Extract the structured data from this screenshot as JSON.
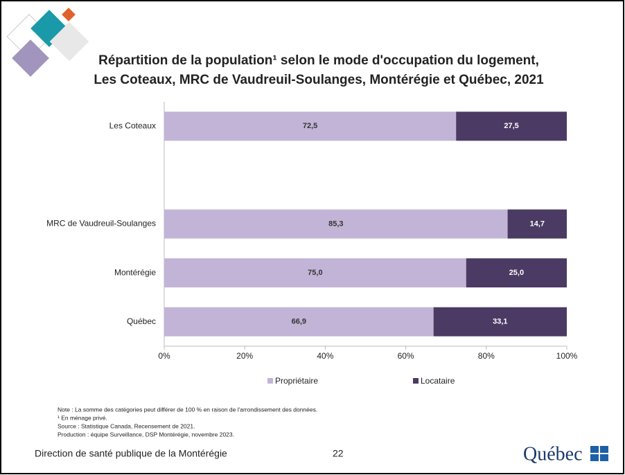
{
  "chart_data": {
    "type": "stacked-barh",
    "title": [
      "Répartition de la population¹ selon le mode d'occupation du logement,",
      "Les Coteaux, MRC de Vaudreuil-Soulanges, Montérégie et Québec, 2021"
    ],
    "categories": [
      "Les Coteaux",
      null,
      "MRC de Vaudreuil-Soulanges",
      "Montérégie",
      "Québec"
    ],
    "series": [
      {
        "name": "Propriétaire",
        "color": "#c2b4d7",
        "label_color": "#333333",
        "values": [
          72.5,
          null,
          85.3,
          75.0,
          66.9
        ],
        "value_labels": [
          "72,5",
          null,
          "85,3",
          "75,0",
          "66,9"
        ]
      },
      {
        "name": "Locataire",
        "color": "#4b3a63",
        "label_color": "#ffffff",
        "values": [
          27.5,
          null,
          14.7,
          25.0,
          33.1
        ],
        "value_labels": [
          "27,5",
          null,
          "14,7",
          "25,0",
          "33,1"
        ]
      }
    ],
    "xlim": [
      0,
      100
    ],
    "xticks": [
      {
        "value": 0,
        "label": "0%"
      },
      {
        "value": 20,
        "label": "20%"
      },
      {
        "value": 40,
        "label": "40%"
      },
      {
        "value": 60,
        "label": "60%"
      },
      {
        "value": 80,
        "label": "80%"
      },
      {
        "value": 100,
        "label": "100%"
      }
    ],
    "legend": "bottom"
  },
  "notes": [
    "Note : La somme des catégories peut différer de 100 % en raison de l'arrondissement des données.",
    "¹ En ménage privé.",
    "Source : Statistique Canada, Recensement de 2021.",
    "Production : équipe Surveillance, DSP Montérégie, novembre 2023."
  ],
  "footer": {
    "organization": "Direction de santé publique de la Montérégie",
    "page": 22,
    "logo": "Québec"
  }
}
